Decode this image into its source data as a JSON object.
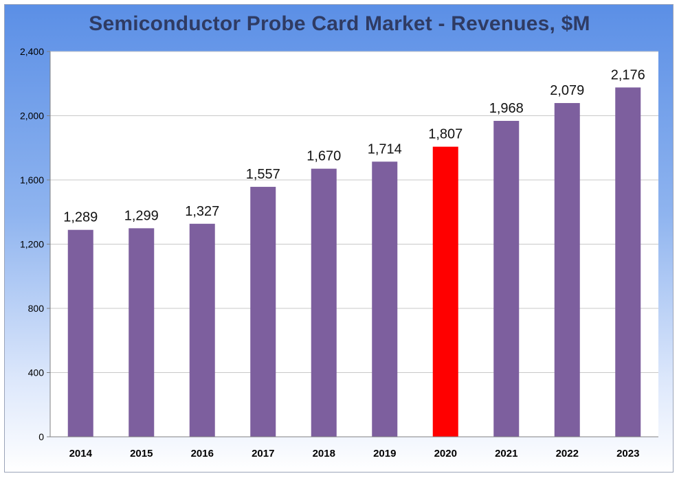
{
  "chart_data": {
    "type": "bar",
    "title": "Semiconductor Probe Card Market - Revenues, $M",
    "xlabel": "",
    "ylabel": "",
    "categories": [
      "2014",
      "2015",
      "2016",
      "2017",
      "2018",
      "2019",
      "2020",
      "2021",
      "2022",
      "2023"
    ],
    "values": [
      1289,
      1299,
      1327,
      1557,
      1670,
      1714,
      1807,
      1968,
      2079,
      2176
    ],
    "data_labels": [
      "1,289",
      "1,299",
      "1,327",
      "1,557",
      "1,670",
      "1,714",
      "1,807",
      "1,968",
      "2,079",
      "2,176"
    ],
    "ylim": [
      0,
      2400
    ],
    "yticks": [
      0,
      400,
      800,
      1200,
      1600,
      2000,
      2400
    ],
    "ytick_labels": [
      "0",
      "400",
      "800",
      "1,200",
      "1,600",
      "2,000",
      "2,400"
    ],
    "grid": true,
    "legend": "none",
    "highlight_category": "2020",
    "colors": {
      "bar": "#7d5f9e",
      "highlight": "#ff0000",
      "grid": "#c8c8c8",
      "axis": "#808080"
    }
  }
}
